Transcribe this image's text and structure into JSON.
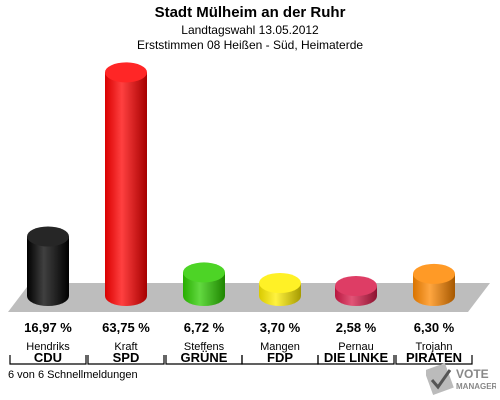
{
  "title": "Stadt Mülheim an der Ruhr",
  "subtitle1": "Landtagswahl 13.05.2012",
  "subtitle2": "Erststimmen 08 Heißen - Süd, Heimaterde",
  "footer": "6 von 6 Schnellmeldungen",
  "logo": {
    "line1": "VOTE",
    "line2": "MANAGER"
  },
  "chart_data": {
    "type": "bar",
    "title": "Stadt Mülheim an der Ruhr",
    "categories": [
      "CDU",
      "SPD",
      "GRÜNE",
      "FDP",
      "DIE LINKE",
      "PIRATEN"
    ],
    "candidates": [
      "Hendriks",
      "Kraft",
      "Steffens",
      "Mangen",
      "Pernau",
      "Trojahn"
    ],
    "values": [
      16.97,
      63.75,
      6.72,
      3.7,
      2.58,
      6.3
    ],
    "value_labels": [
      "16,97 %",
      "63,75 %",
      "6,72 %",
      "3,70 %",
      "2,58 %",
      "6,30 %"
    ],
    "colors": [
      "#000000",
      "#ff0000",
      "#2ecc00",
      "#ffee00",
      "#d81b4a",
      "#ff8800"
    ],
    "ylim": [
      0,
      65
    ],
    "grid": false
  }
}
